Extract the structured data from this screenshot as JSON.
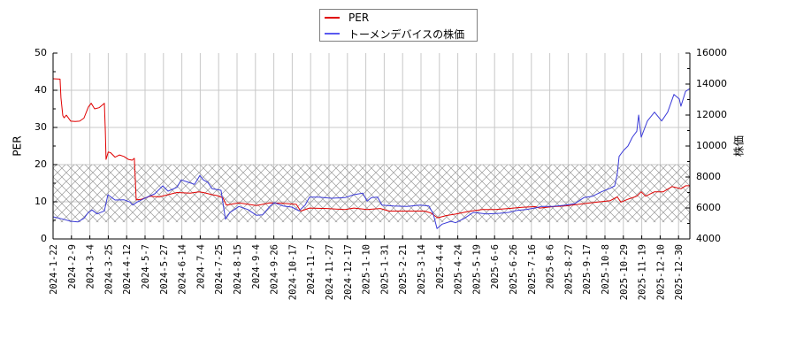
{
  "legend": {
    "items": [
      {
        "label": "PER",
        "color": "#e00000"
      },
      {
        "label": "トーメンデバイスの株価",
        "color": "#5a5af0"
      }
    ]
  },
  "axes": {
    "left_title": "PER",
    "right_title": "株価"
  },
  "colors": {
    "per_line": "#e00000",
    "price_line": "#3a3ad8",
    "grid": "#c8c8c8",
    "hatch": "#9a9a9a",
    "axis": "#000000"
  },
  "chart_data": {
    "type": "line",
    "title": "",
    "xlabel": "",
    "ylabel": "PER",
    "ylabel_right": "株価",
    "ylim": [
      0,
      50
    ],
    "ylim_right": [
      4000,
      16000
    ],
    "yticks": [
      0,
      10,
      20,
      30,
      40,
      50
    ],
    "yticks_right": [
      4000,
      6000,
      8000,
      10000,
      12000,
      14000,
      16000
    ],
    "grid": true,
    "legend_position": "top-center",
    "shaded_band": {
      "axis": "left",
      "from": 4.5,
      "to": 20,
      "style": "crosshatch"
    },
    "categories": [
      "2024-1-22",
      "2024-2-9",
      "2024-3-4",
      "2024-3-25",
      "2024-4-12",
      "2024-5-7",
      "2024-5-27",
      "2024-6-14",
      "2024-7-4",
      "2024-7-25",
      "2024-8-15",
      "2024-9-4",
      "2024-9-26",
      "2024-10-17",
      "2024-11-7",
      "2024-11-27",
      "2024-12-17",
      "2025-1-10",
      "2025-1-31",
      "2025-2-21",
      "2025-3-14",
      "2025-4-4",
      "2025-4-24",
      "2025-5-19",
      "2025-6-6",
      "2025-6-26",
      "2025-7-16",
      "2025-8-6",
      "2025-8-27",
      "2025-9-17",
      "2025-10-8",
      "2025-10-29",
      "2025-11-19",
      "2025-12-10",
      "2025-12-30"
    ],
    "x_note": "points are [tick_index, value]; tick_index is fractional position along categories",
    "series": [
      {
        "name": "PER",
        "axis": "left",
        "points": [
          [
            0,
            43.1
          ],
          [
            0.38,
            43.0
          ],
          [
            0.43,
            38
          ],
          [
            0.53,
            33.2
          ],
          [
            0.6,
            32.6
          ],
          [
            0.72,
            33.3
          ],
          [
            0.96,
            31.7
          ],
          [
            1.2,
            31.6
          ],
          [
            1.44,
            31.7
          ],
          [
            1.68,
            32.5
          ],
          [
            1.92,
            35.5
          ],
          [
            2.07,
            36.5
          ],
          [
            2.26,
            35
          ],
          [
            2.5,
            35.3
          ],
          [
            2.79,
            36.5
          ],
          [
            2.84,
            29
          ],
          [
            2.88,
            21.4
          ],
          [
            3.0,
            23.4
          ],
          [
            3.13,
            23.2
          ],
          [
            3.37,
            22
          ],
          [
            3.61,
            22.6
          ],
          [
            3.85,
            22.2
          ],
          [
            4.09,
            21.4
          ],
          [
            4.3,
            21.2
          ],
          [
            4.42,
            21.7
          ],
          [
            4.52,
            10.5
          ],
          [
            4.81,
            10.7
          ],
          [
            5.29,
            11.5
          ],
          [
            5.77,
            11.3
          ],
          [
            6.25,
            11.9
          ],
          [
            6.73,
            12.5
          ],
          [
            7.45,
            12.3
          ],
          [
            7.93,
            12.7
          ],
          [
            8.17,
            12.5
          ],
          [
            8.65,
            11.9
          ],
          [
            8.89,
            11.7
          ],
          [
            9.23,
            11.1
          ],
          [
            9.42,
            9.1
          ],
          [
            10.1,
            9.7
          ],
          [
            11.06,
            9.0
          ],
          [
            11.78,
            9.7
          ],
          [
            12.5,
            9.6
          ],
          [
            13.22,
            9.3
          ],
          [
            13.46,
            7.5
          ],
          [
            13.94,
            8.3
          ],
          [
            14.9,
            8.2
          ],
          [
            15.87,
            7.9
          ],
          [
            16.35,
            8.3
          ],
          [
            17.07,
            7.9
          ],
          [
            17.79,
            8.2
          ],
          [
            18.27,
            7.5
          ],
          [
            18.75,
            7.5
          ],
          [
            20.19,
            7.5
          ],
          [
            20.53,
            7.0
          ],
          [
            20.91,
            5.7
          ],
          [
            21.39,
            6.3
          ],
          [
            21.88,
            6.7
          ],
          [
            22.6,
            7.4
          ],
          [
            23.32,
            7.9
          ],
          [
            24.04,
            7.9
          ],
          [
            24.76,
            8.2
          ],
          [
            25.48,
            8.5
          ],
          [
            26.2,
            8.7
          ],
          [
            26.45,
            8.3
          ],
          [
            27.16,
            8.7
          ],
          [
            27.88,
            8.9
          ],
          [
            28.85,
            9.5
          ],
          [
            29.57,
            9.9
          ],
          [
            30.29,
            10.3
          ],
          [
            30.67,
            11.3
          ],
          [
            30.87,
            9.9
          ],
          [
            31.25,
            10.7
          ],
          [
            31.73,
            11.5
          ],
          [
            31.97,
            12.7
          ],
          [
            32.21,
            11.5
          ],
          [
            32.69,
            12.7
          ],
          [
            33.17,
            12.7
          ],
          [
            33.65,
            14.1
          ],
          [
            34.13,
            13.5
          ],
          [
            34.38,
            14.3
          ],
          [
            34.62,
            14.3
          ]
        ]
      },
      {
        "name": "トーメンデバイスの株価",
        "axis": "right",
        "points": [
          [
            0,
            5428
          ],
          [
            0.48,
            5297
          ],
          [
            0.96,
            5143
          ],
          [
            1.35,
            5103
          ],
          [
            1.68,
            5331
          ],
          [
            1.92,
            5714
          ],
          [
            2.12,
            5868
          ],
          [
            2.4,
            5617
          ],
          [
            2.79,
            5811
          ],
          [
            2.98,
            6857
          ],
          [
            3.37,
            6514
          ],
          [
            3.85,
            6533
          ],
          [
            4.18,
            6381
          ],
          [
            4.33,
            6190
          ],
          [
            4.57,
            6381
          ],
          [
            5.05,
            6667
          ],
          [
            5.53,
            6914
          ],
          [
            5.96,
            7428
          ],
          [
            6.25,
            7086
          ],
          [
            6.73,
            7333
          ],
          [
            6.97,
            7810
          ],
          [
            7.36,
            7657
          ],
          [
            7.69,
            7524
          ],
          [
            7.98,
            8095
          ],
          [
            8.17,
            7810
          ],
          [
            8.41,
            7657
          ],
          [
            8.65,
            7238
          ],
          [
            9.13,
            7143
          ],
          [
            9.37,
            5276
          ],
          [
            9.62,
            5714
          ],
          [
            9.86,
            5905
          ],
          [
            10.1,
            6095
          ],
          [
            10.58,
            5905
          ],
          [
            11.06,
            5524
          ],
          [
            11.39,
            5562
          ],
          [
            11.78,
            6095
          ],
          [
            12.02,
            6343
          ],
          [
            12.5,
            6133
          ],
          [
            12.98,
            6057
          ],
          [
            13.37,
            5811
          ],
          [
            13.7,
            6190
          ],
          [
            13.94,
            6705
          ],
          [
            14.42,
            6705
          ],
          [
            15.14,
            6629
          ],
          [
            15.87,
            6667
          ],
          [
            16.35,
            6857
          ],
          [
            16.83,
            6952
          ],
          [
            17.07,
            6438
          ],
          [
            17.31,
            6667
          ],
          [
            17.64,
            6705
          ],
          [
            17.88,
            6190
          ],
          [
            18.51,
            6133
          ],
          [
            19.23,
            6095
          ],
          [
            19.95,
            6190
          ],
          [
            20.43,
            6133
          ],
          [
            20.67,
            5617
          ],
          [
            20.87,
            4667
          ],
          [
            21.15,
            4952
          ],
          [
            21.63,
            5143
          ],
          [
            21.88,
            5048
          ],
          [
            22.36,
            5333
          ],
          [
            22.84,
            5714
          ],
          [
            23.56,
            5617
          ],
          [
            24.28,
            5657
          ],
          [
            24.76,
            5714
          ],
          [
            25.24,
            5848
          ],
          [
            25.72,
            5905
          ],
          [
            26.2,
            6000
          ],
          [
            26.54,
            6095
          ],
          [
            27.16,
            6095
          ],
          [
            27.88,
            6190
          ],
          [
            28.37,
            6286
          ],
          [
            28.85,
            6667
          ],
          [
            29.33,
            6762
          ],
          [
            29.81,
            7048
          ],
          [
            30.29,
            7276
          ],
          [
            30.53,
            7428
          ],
          [
            30.67,
            8190
          ],
          [
            30.77,
            9333
          ],
          [
            31.01,
            9714
          ],
          [
            31.25,
            10000
          ],
          [
            31.49,
            10571
          ],
          [
            31.73,
            10952
          ],
          [
            31.83,
            12000
          ],
          [
            31.97,
            10571
          ],
          [
            32.31,
            11619
          ],
          [
            32.69,
            12190
          ],
          [
            33.08,
            11619
          ],
          [
            33.41,
            12190
          ],
          [
            33.75,
            13333
          ],
          [
            34.04,
            13048
          ],
          [
            34.13,
            12571
          ],
          [
            34.38,
            13524
          ],
          [
            34.62,
            13714
          ]
        ]
      }
    ]
  }
}
